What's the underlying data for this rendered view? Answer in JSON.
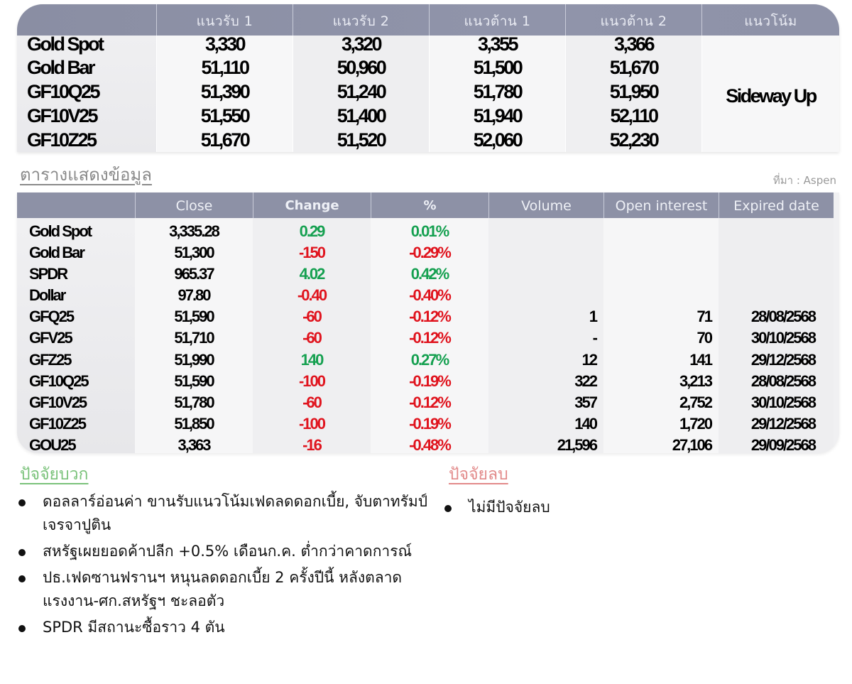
{
  "levels_table": {
    "headers": [
      "",
      "แนวรับ 1",
      "แนวรับ 2",
      "แนวต้าน 1",
      "แนวต้าน 2",
      "แนวโน้ม"
    ],
    "rows": [
      {
        "name": "Gold Spot",
        "s1": "3,330",
        "s2": "3,320",
        "r1": "3,355",
        "r2": "3,366"
      },
      {
        "name": "Gold Bar",
        "s1": "51,110",
        "s2": "50,960",
        "r1": "51,500",
        "r2": "51,670"
      },
      {
        "name": "GF10Q25",
        "s1": "51,390",
        "s2": "51,240",
        "r1": "51,780",
        "r2": "51,950"
      },
      {
        "name": "GF10V25",
        "s1": "51,550",
        "s2": "51,400",
        "r1": "51,940",
        "r2": "52,110"
      },
      {
        "name": "GF10Z25",
        "s1": "51,670",
        "s2": "51,520",
        "r1": "52,060",
        "r2": "52,230"
      }
    ],
    "trend": "Sideway Up"
  },
  "section": {
    "title": "ตารางแสดงข้อมูล",
    "source": "ที่มา : Aspen"
  },
  "market_table": {
    "headers": [
      "",
      "Close",
      "Change",
      "%",
      "Volume",
      "Open interest",
      "Expired date"
    ],
    "rows": [
      {
        "name": "Gold Spot",
        "close": "3,335.28",
        "change": "0.29",
        "pct": "0.01%",
        "dir": "pos",
        "volume": "",
        "oi": "",
        "expiry": ""
      },
      {
        "name": "Gold Bar",
        "close": "51,300",
        "change": "-150",
        "pct": "-0.29%",
        "dir": "neg",
        "volume": "",
        "oi": "",
        "expiry": ""
      },
      {
        "name": "SPDR",
        "close": "965.37",
        "change": "4.02",
        "pct": "0.42%",
        "dir": "pos",
        "volume": "",
        "oi": "",
        "expiry": ""
      },
      {
        "name": "Dollar",
        "close": "97.80",
        "change": "-0.40",
        "pct": "-0.40%",
        "dir": "neg",
        "volume": "",
        "oi": "",
        "expiry": ""
      },
      {
        "name": "GFQ25",
        "close": "51,590",
        "change": "-60",
        "pct": "-0.12%",
        "dir": "neg",
        "volume": "1",
        "oi": "71",
        "expiry": "28/08/2568"
      },
      {
        "name": "GFV25",
        "close": "51,710",
        "change": "-60",
        "pct": "-0.12%",
        "dir": "neg",
        "volume": "-",
        "oi": "70",
        "expiry": "30/10/2568"
      },
      {
        "name": "GFZ25",
        "close": "51,990",
        "change": "140",
        "pct": "0.27%",
        "dir": "pos",
        "volume": "12",
        "oi": "141",
        "expiry": "29/12/2568"
      },
      {
        "name": "GF10Q25",
        "close": "51,590",
        "change": "-100",
        "pct": "-0.19%",
        "dir": "neg",
        "volume": "322",
        "oi": "3,213",
        "expiry": "28/08/2568"
      },
      {
        "name": "GF10V25",
        "close": "51,780",
        "change": "-60",
        "pct": "-0.12%",
        "dir": "neg",
        "volume": "357",
        "oi": "2,752",
        "expiry": "30/10/2568"
      },
      {
        "name": "GF10Z25",
        "close": "51,850",
        "change": "-100",
        "pct": "-0.19%",
        "dir": "neg",
        "volume": "140",
        "oi": "1,720",
        "expiry": "29/12/2568"
      },
      {
        "name": "GOU25",
        "close": "3,363",
        "change": "-16",
        "pct": "-0.48%",
        "dir": "neg",
        "volume": "21,596",
        "oi": "27,106",
        "expiry": "29/09/2568"
      }
    ]
  },
  "factors": {
    "positive": {
      "title": "ปัจจัยบวก",
      "items": [
        "ดอลลาร์อ่อนค่า ขานรับแนวโน้มเฟดลดดอกเบี้ย, จับตาทรัมป์เจรจาปูติน",
        "สหรัฐเผยยอดค้าปลีก +0.5% เดือนก.ค. ต่ำกว่าคาดการณ์",
        "ปธ.เฟดซานฟรานฯ หนุนลดดอกเบี้ย 2 ครั้งปีนี้ หลังตลาดแรงงาน-ศก.สหรัฐฯ ชะลอตัว",
        "SPDR มีสถานะซื้อราว 4 ตัน"
      ]
    },
    "negative": {
      "title": "ปัจจัยลบ",
      "items": [
        "ไม่มีปัจจัยลบ"
      ]
    }
  },
  "colors": {
    "header_bg": "#8d91a6",
    "positive": "#15a050",
    "negative": "#e0141e",
    "positive_title": "#7ac27a",
    "negative_title": "#e28a8a"
  }
}
